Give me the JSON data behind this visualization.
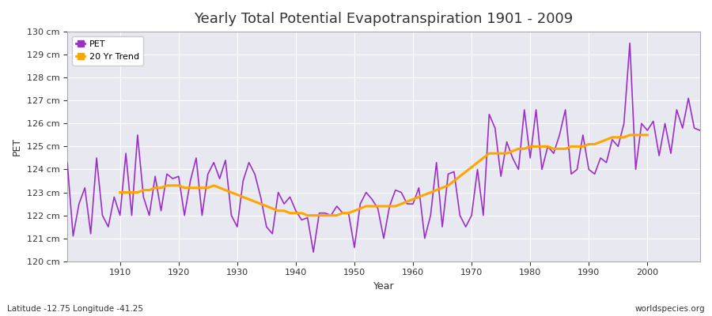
{
  "title": "Yearly Total Potential Evapotranspiration 1901 - 2009",
  "xlabel": "Year",
  "ylabel": "PET",
  "footnote_left": "Latitude -12.75 Longitude -41.25",
  "footnote_right": "worldspecies.org",
  "ylim": [
    120,
    130
  ],
  "xlim": [
    1901,
    2009
  ],
  "pet_color": "#9B30C8",
  "trend_color": "#FFA500",
  "plot_bg_color": "#E8E8F0",
  "fig_bg_color": "#FFFFFF",
  "legend_entries": [
    "PET",
    "20 Yr Trend"
  ],
  "years": [
    1901,
    1902,
    1903,
    1904,
    1905,
    1906,
    1907,
    1908,
    1909,
    1910,
    1911,
    1912,
    1913,
    1914,
    1915,
    1916,
    1917,
    1918,
    1919,
    1920,
    1921,
    1922,
    1923,
    1924,
    1925,
    1926,
    1927,
    1928,
    1929,
    1930,
    1931,
    1932,
    1933,
    1934,
    1935,
    1936,
    1937,
    1938,
    1939,
    1940,
    1941,
    1942,
    1943,
    1944,
    1945,
    1946,
    1947,
    1948,
    1949,
    1950,
    1951,
    1952,
    1953,
    1954,
    1955,
    1956,
    1957,
    1958,
    1959,
    1960,
    1961,
    1962,
    1963,
    1964,
    1965,
    1966,
    1967,
    1968,
    1969,
    1970,
    1971,
    1972,
    1973,
    1974,
    1975,
    1976,
    1977,
    1978,
    1979,
    1980,
    1981,
    1982,
    1983,
    1984,
    1985,
    1986,
    1987,
    1988,
    1989,
    1990,
    1991,
    1992,
    1993,
    1994,
    1995,
    1996,
    1997,
    1998,
    1999,
    2000,
    2001,
    2002,
    2003,
    2004,
    2005,
    2006,
    2007,
    2008,
    2009
  ],
  "pet_values": [
    124.3,
    121.1,
    122.5,
    123.2,
    121.2,
    124.5,
    122.0,
    121.5,
    122.8,
    122.0,
    124.7,
    122.0,
    125.5,
    122.8,
    122.0,
    123.7,
    122.2,
    123.8,
    123.6,
    123.7,
    122.0,
    123.5,
    124.5,
    122.0,
    123.8,
    124.3,
    123.6,
    124.4,
    122.0,
    121.5,
    123.5,
    124.3,
    123.8,
    122.8,
    121.5,
    121.2,
    123.0,
    122.5,
    122.8,
    122.2,
    121.8,
    121.9,
    120.4,
    122.1,
    122.1,
    122.0,
    122.4,
    122.1,
    122.1,
    120.6,
    122.5,
    123.0,
    122.7,
    122.3,
    121.0,
    122.4,
    123.1,
    123.0,
    122.5,
    122.5,
    123.2,
    121.0,
    122.0,
    124.3,
    121.5,
    123.8,
    123.9,
    122.0,
    121.5,
    122.0,
    124.0,
    122.0,
    126.4,
    125.8,
    123.7,
    125.2,
    124.5,
    124.0,
    126.6,
    124.5,
    126.6,
    124.0,
    125.0,
    124.7,
    125.5,
    126.6,
    123.8,
    124.0,
    125.5,
    124.0,
    123.8,
    124.5,
    124.3,
    125.3,
    125.0,
    126.0,
    129.5,
    124.0,
    126.0,
    125.7,
    126.1,
    124.6,
    126.0,
    124.7,
    126.6,
    125.8,
    127.1,
    125.8,
    125.7
  ],
  "trend_years": [
    1910,
    1911,
    1912,
    1913,
    1914,
    1915,
    1916,
    1917,
    1918,
    1919,
    1920,
    1921,
    1922,
    1923,
    1924,
    1925,
    1926,
    1927,
    1928,
    1929,
    1930,
    1931,
    1932,
    1933,
    1934,
    1935,
    1936,
    1937,
    1938,
    1939,
    1940,
    1941,
    1942,
    1943,
    1944,
    1945,
    1946,
    1947,
    1948,
    1949,
    1950,
    1951,
    1952,
    1953,
    1954,
    1955,
    1956,
    1957,
    1958,
    1959,
    1960,
    1961,
    1962,
    1963,
    1964,
    1965,
    1966,
    1967,
    1968,
    1969,
    1970,
    1971,
    1972,
    1973,
    1974,
    1975,
    1976,
    1977,
    1978,
    1979,
    1980,
    1981,
    1982,
    1983,
    1984,
    1985,
    1986,
    1987,
    1988,
    1989,
    1990,
    1991,
    1992,
    1993,
    1994,
    1995,
    1996,
    1997,
    1998,
    1999,
    2000
  ],
  "trend_values": [
    123.0,
    123.0,
    123.0,
    123.0,
    123.1,
    123.1,
    123.2,
    123.2,
    123.3,
    123.3,
    123.3,
    123.2,
    123.2,
    123.2,
    123.2,
    123.2,
    123.3,
    123.2,
    123.1,
    123.0,
    122.9,
    122.8,
    122.7,
    122.6,
    122.5,
    122.4,
    122.3,
    122.2,
    122.2,
    122.1,
    122.1,
    122.1,
    122.0,
    122.0,
    122.0,
    122.0,
    122.0,
    122.0,
    122.1,
    122.1,
    122.2,
    122.3,
    122.4,
    122.4,
    122.4,
    122.4,
    122.4,
    122.4,
    122.5,
    122.6,
    122.7,
    122.8,
    122.9,
    123.0,
    123.1,
    123.2,
    123.3,
    123.5,
    123.7,
    123.9,
    124.1,
    124.3,
    124.5,
    124.7,
    124.7,
    124.7,
    124.7,
    124.8,
    124.9,
    124.9,
    125.0,
    125.0,
    125.0,
    125.0,
    124.9,
    124.9,
    124.9,
    125.0,
    125.0,
    125.0,
    125.1,
    125.1,
    125.2,
    125.3,
    125.4,
    125.4,
    125.4,
    125.5,
    125.5,
    125.5,
    125.5
  ],
  "xticks": [
    1910,
    1920,
    1930,
    1940,
    1950,
    1960,
    1970,
    1980,
    1990,
    2000
  ],
  "yticks": [
    120,
    121,
    122,
    123,
    124,
    125,
    126,
    127,
    128,
    129,
    130
  ],
  "title_fontsize": 13,
  "axis_label_fontsize": 9,
  "tick_fontsize": 8,
  "legend_fontsize": 8,
  "footnote_fontsize": 7.5
}
